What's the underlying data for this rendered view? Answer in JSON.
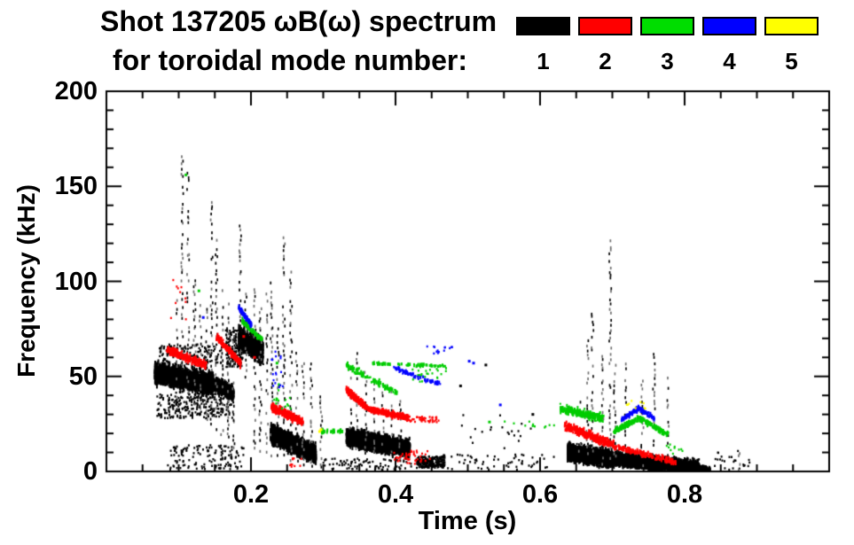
{
  "title": {
    "line1": "Shot 137205 ωB(ω) spectrum",
    "line2": "for toroidal mode number:"
  },
  "legend": {
    "entries": [
      {
        "label": "1",
        "color": "#000000"
      },
      {
        "label": "2",
        "color": "#ff0000"
      },
      {
        "label": "3",
        "color": "#00dd00"
      },
      {
        "label": "4",
        "color": "#0000ff"
      },
      {
        "label": "5",
        "color": "#ffff00"
      }
    ]
  },
  "chart_data": {
    "type": "scatter",
    "title": "Shot 137205 ωB(ω) spectrum for toroidal mode number: 1-5",
    "xlabel": "Time (s)",
    "ylabel": "Frequency (kHz)",
    "xlim": [
      0.0,
      1.0
    ],
    "ylim": [
      0,
      200
    ],
    "xticks": [
      {
        "value": 0.2,
        "label": "0.2"
      },
      {
        "value": 0.4,
        "label": "0.4"
      },
      {
        "value": 0.6,
        "label": "0.6"
      },
      {
        "value": 0.8,
        "label": "0.8"
      }
    ],
    "yticks": [
      {
        "value": 0,
        "label": "0"
      },
      {
        "value": 50,
        "label": "50"
      },
      {
        "value": 100,
        "label": "100"
      },
      {
        "value": 150,
        "label": "150"
      },
      {
        "value": 200,
        "label": "200"
      }
    ],
    "xminor": 0.05,
    "yminor": 10,
    "grid": false,
    "legend_position": "top-right",
    "series": [
      {
        "name": "n=1",
        "color": "#000000",
        "features": [
          {
            "kind": "band",
            "t": [
              0.067,
              0.148
            ],
            "f": [
              52,
              46
            ],
            "w": 15,
            "n": 2600
          },
          {
            "kind": "band",
            "t": [
              0.148,
              0.176
            ],
            "f": [
              46,
              41
            ],
            "w": 10,
            "n": 700
          },
          {
            "kind": "dots",
            "t": [
              0.07,
              0.176
            ],
            "f": [
              28,
              42
            ],
            "n": 280
          },
          {
            "kind": "dots",
            "t": [
              0.07,
              0.16
            ],
            "f": [
              55,
              67
            ],
            "n": 130
          },
          {
            "kind": "dots",
            "t": [
              0.165,
              0.19
            ],
            "f": [
              55,
              75
            ],
            "n": 150
          },
          {
            "kind": "band",
            "t": [
              0.183,
              0.217
            ],
            "f": [
              70,
              63
            ],
            "w": 18,
            "n": 900
          },
          {
            "kind": "band",
            "t": [
              0.227,
              0.29
            ],
            "f": [
              20,
              9
            ],
            "w": 13,
            "n": 2300
          },
          {
            "kind": "band",
            "t": [
              0.332,
              0.42
            ],
            "f": [
              18,
              12
            ],
            "w": 13,
            "n": 2300
          },
          {
            "kind": "dots",
            "t": [
              0.43,
              0.468
            ],
            "f": [
              2,
              8
            ],
            "n": 220
          },
          {
            "kind": "band",
            "t": [
              0.638,
              0.7
            ],
            "f": [
              11,
              6
            ],
            "w": 12,
            "n": 1300
          },
          {
            "kind": "band",
            "t": [
              0.638,
              0.82
            ],
            "f": [
              9,
              2
            ],
            "w": 10,
            "n": 3600
          },
          {
            "kind": "band",
            "t": [
              0.8,
              0.835
            ],
            "f": [
              3,
              1
            ],
            "w": 4,
            "n": 280
          },
          {
            "kind": "dots",
            "t": [
              0.085,
              0.19
            ],
            "f": [
              1,
              14
            ],
            "n": 140
          },
          {
            "kind": "dots",
            "t": [
              0.3,
              0.43
            ],
            "f": [
              1,
              7
            ],
            "n": 90
          },
          {
            "kind": "dots",
            "t": [
              0.46,
              0.62
            ],
            "f": [
              1,
              9
            ],
            "n": 60
          },
          {
            "kind": "dots",
            "t": [
              0.84,
              0.89
            ],
            "f": [
              1,
              11
            ],
            "n": 25
          },
          {
            "kind": "dots",
            "t": [
              0.49,
              0.6
            ],
            "f": [
              12,
              30
            ],
            "n": 20
          },
          {
            "kind": "pts",
            "pts": [
              [
                0.49,
                45
              ],
              [
                0.525,
                56
              ],
              [
                0.59,
                30
              ]
            ]
          },
          {
            "kind": "spikes",
            "list": [
              [
                0.098,
                35,
                90
              ],
              [
                0.105,
                40,
                166
              ],
              [
                0.113,
                40,
                157
              ],
              [
                0.122,
                35,
                101
              ],
              [
                0.13,
                30,
                88
              ],
              [
                0.139,
                28,
                90
              ],
              [
                0.1455,
                25,
                151
              ],
              [
                0.152,
                22,
                126
              ],
              [
                0.16,
                20,
                100
              ],
              [
                0.168,
                15,
                88
              ],
              [
                0.176,
                12,
                75
              ],
              [
                0.185,
                55,
                131
              ],
              [
                0.193,
                50,
                100
              ],
              [
                0.205,
                12,
                95
              ],
              [
                0.213,
                10,
                85
              ],
              [
                0.222,
                8,
                95
              ],
              [
                0.2285,
                8,
                101
              ],
              [
                0.2375,
                8,
                82
              ],
              [
                0.2455,
                8,
                127
              ],
              [
                0.2555,
                6,
                104
              ],
              [
                0.2635,
                5,
                72
              ],
              [
                0.272,
                4,
                62
              ],
              [
                0.2835,
                3,
                56
              ],
              [
                0.297,
                2,
                40
              ],
              [
                0.3375,
                12,
                55
              ],
              [
                0.3465,
                12,
                63
              ],
              [
                0.3585,
                10,
                52
              ],
              [
                0.3705,
                10,
                49
              ],
              [
                0.3825,
                8,
                45
              ],
              [
                0.3945,
                8,
                41
              ],
              [
                0.4065,
                6,
                37
              ],
              [
                0.655,
                4,
                42
              ],
              [
                0.6655,
                4,
                68
              ],
              [
                0.6725,
                4,
                84
              ],
              [
                0.6865,
                4,
                61
              ],
              [
                0.697,
                4,
                121
              ],
              [
                0.7035,
                3,
                61
              ],
              [
                0.7175,
                3,
                57
              ],
              [
                0.7415,
                3,
                46
              ],
              [
                0.7575,
                2,
                63
              ],
              [
                0.7775,
                2,
                48
              ],
              [
                0.8755,
                1,
                13
              ]
            ]
          }
        ]
      },
      {
        "name": "n=2",
        "color": "#ff0000",
        "features": [
          {
            "kind": "band",
            "t": [
              0.083,
              0.138
            ],
            "f": [
              64,
              56
            ],
            "w": 6,
            "n": 300
          },
          {
            "kind": "band",
            "t": [
              0.152,
              0.186
            ],
            "f": [
              71,
              57
            ],
            "w": 6,
            "n": 220
          },
          {
            "kind": "dots",
            "t": [
              0.085,
              0.112
            ],
            "f": [
              80,
              101
            ],
            "n": 10
          },
          {
            "kind": "pts",
            "pts": [
              [
                0.19,
                71
              ],
              [
                0.205,
                60
              ]
            ]
          },
          {
            "kind": "band",
            "t": [
              0.228,
              0.272
            ],
            "f": [
              34,
              26
            ],
            "w": 6,
            "n": 300
          },
          {
            "kind": "band",
            "t": [
              0.332,
              0.362
            ],
            "f": [
              43,
              33
            ],
            "w": 5,
            "n": 260
          },
          {
            "kind": "band",
            "t": [
              0.362,
              0.418
            ],
            "f": [
              33,
              28
            ],
            "w": 4,
            "n": 300
          },
          {
            "kind": "dots",
            "t": [
              0.418,
              0.462
            ],
            "f": [
              26,
              29
            ],
            "n": 40
          },
          {
            "kind": "dots",
            "t": [
              0.398,
              0.448
            ],
            "f": [
              4,
              11
            ],
            "n": 45
          },
          {
            "kind": "band",
            "t": [
              0.634,
              0.702
            ],
            "f": [
              24,
              14
            ],
            "w": 6,
            "n": 380
          },
          {
            "kind": "band",
            "t": [
              0.702,
              0.788
            ],
            "f": [
              13,
              5
            ],
            "w": 4,
            "n": 200
          },
          {
            "kind": "dots",
            "t": [
              0.252,
              0.272
            ],
            "f": [
              2,
              7
            ],
            "n": 10
          }
        ]
      },
      {
        "name": "n=3",
        "color": "#00cc00",
        "features": [
          {
            "kind": "band",
            "t": [
              0.188,
              0.216
            ],
            "f": [
              79,
              69
            ],
            "w": 4,
            "n": 110
          },
          {
            "kind": "pts",
            "pts": [
              [
                0.11,
                156
              ],
              [
                0.128,
                95
              ],
              [
                0.236,
                57
              ],
              [
                0.53,
                26
              ]
            ]
          },
          {
            "kind": "dots",
            "t": [
              0.228,
              0.262
            ],
            "f": [
              33,
              46
            ],
            "n": 16
          },
          {
            "kind": "band",
            "t": [
              0.298,
              0.327
            ],
            "f": [
              21,
              21
            ],
            "w": 2.5,
            "n": 35
          },
          {
            "kind": "band",
            "t": [
              0.332,
              0.402
            ],
            "f": [
              56,
              41
            ],
            "w": 5,
            "n": 110
          },
          {
            "kind": "band",
            "t": [
              0.368,
              0.478
            ],
            "f": [
              57,
              55
            ],
            "w": 2.5,
            "n": 70
          },
          {
            "kind": "dots",
            "t": [
              0.418,
              0.472
            ],
            "f": [
              47,
              54
            ],
            "n": 25
          },
          {
            "kind": "dots",
            "t": [
              0.548,
              0.622
            ],
            "f": [
              23,
              27
            ],
            "n": 12
          },
          {
            "kind": "band",
            "t": [
              0.628,
              0.688
            ],
            "f": [
              33,
              28
            ],
            "w": 6,
            "n": 260
          },
          {
            "kind": "band",
            "t": [
              0.702,
              0.738
            ],
            "f": [
              21,
              28
            ],
            "w": 4,
            "n": 130
          },
          {
            "kind": "band",
            "t": [
              0.738,
              0.778
            ],
            "f": [
              28,
              19
            ],
            "w": 4,
            "n": 130
          },
          {
            "kind": "dots",
            "t": [
              0.775,
              0.8
            ],
            "f": [
              9,
              15
            ],
            "n": 10
          }
        ]
      },
      {
        "name": "n=4",
        "color": "#0000ff",
        "features": [
          {
            "kind": "band",
            "t": [
              0.183,
              0.201
            ],
            "f": [
              86,
              77
            ],
            "w": 4,
            "n": 100
          },
          {
            "kind": "pts",
            "pts": [
              [
                0.134,
                81
              ],
              [
                0.545,
                35
              ],
              [
                0.508,
                57
              ],
              [
                0.502,
                58
              ]
            ]
          },
          {
            "kind": "dots",
            "t": [
              0.23,
              0.247
            ],
            "f": [
              44,
              53
            ],
            "n": 10
          },
          {
            "kind": "dots",
            "t": [
              0.228,
              0.242
            ],
            "f": [
              58,
              64
            ],
            "n": 6
          },
          {
            "kind": "band",
            "t": [
              0.396,
              0.428
            ],
            "f": [
              55,
              50
            ],
            "w": 3,
            "n": 45
          },
          {
            "kind": "band",
            "t": [
              0.428,
              0.462
            ],
            "f": [
              50,
              46
            ],
            "w": 3,
            "n": 35
          },
          {
            "kind": "dots",
            "t": [
              0.443,
              0.482
            ],
            "f": [
              62,
              66
            ],
            "n": 14
          },
          {
            "kind": "band",
            "t": [
              0.712,
              0.736
            ],
            "f": [
              27,
              33
            ],
            "w": 3.5,
            "n": 80
          },
          {
            "kind": "band",
            "t": [
              0.736,
              0.758
            ],
            "f": [
              33,
              28
            ],
            "w": 3.5,
            "n": 70
          }
        ]
      },
      {
        "name": "n=5",
        "color": "#ffff00",
        "features": [
          {
            "kind": "pts",
            "pts": [
              [
                0.295,
                21
              ],
              [
                0.297,
                22
              ]
            ]
          },
          {
            "kind": "dots",
            "t": [
              0.718,
              0.748
            ],
            "f": [
              33,
              38
            ],
            "n": 9
          }
        ]
      }
    ]
  }
}
